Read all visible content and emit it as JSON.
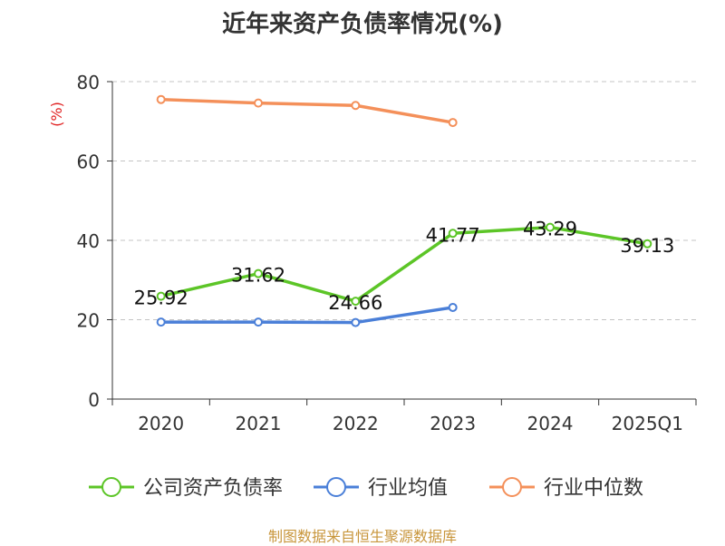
{
  "chart_data": {
    "type": "line",
    "title": "近年来资产负债率情况(%)",
    "ylabel": "(%)",
    "categories": [
      "2020",
      "2021",
      "2022",
      "2023",
      "2024",
      "2025Q1"
    ],
    "ylim": [
      0,
      80
    ],
    "yticks": [
      0,
      20,
      40,
      60,
      80
    ],
    "grid": true,
    "legend_position": "bottom",
    "series": [
      {
        "name": "公司资产负债率",
        "values": [
          25.92,
          31.62,
          24.66,
          41.77,
          43.29,
          39.13
        ],
        "color": "#5cc527",
        "labels": [
          "25.92",
          "31.62",
          "24.66",
          "41.77",
          "43.29",
          "39.13"
        ]
      },
      {
        "name": "行业均值",
        "values": [
          19.4,
          19.4,
          19.3,
          23.1,
          null,
          null
        ],
        "color": "#4a7fd8"
      },
      {
        "name": "行业中位数",
        "values": [
          75.5,
          74.6,
          74.0,
          69.7,
          null,
          null
        ],
        "color": "#f4905a"
      }
    ]
  },
  "footer": {
    "source": "制图数据来自恒生聚源数据库"
  }
}
